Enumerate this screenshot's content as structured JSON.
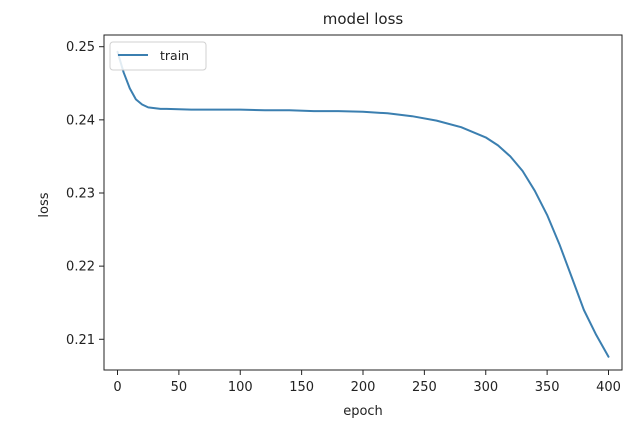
{
  "chart_data": {
    "type": "line",
    "title": "model loss",
    "xlabel": "epoch",
    "ylabel": "loss",
    "xlim": [
      -11,
      411
    ],
    "ylim": [
      0.2058,
      0.2516
    ],
    "xticks": [
      0,
      50,
      100,
      150,
      200,
      250,
      300,
      350,
      400
    ],
    "yticks": [
      0.21,
      0.22,
      0.23,
      0.24,
      0.25
    ],
    "ytick_labels": [
      "0.21",
      "0.22",
      "0.23",
      "0.24",
      "0.25"
    ],
    "grid": false,
    "legend": {
      "position": "upper-left",
      "entries": [
        "train"
      ]
    },
    "series": [
      {
        "name": "train",
        "color": "#3b7fb0",
        "x": [
          0,
          5,
          10,
          15,
          20,
          25,
          30,
          35,
          40,
          60,
          80,
          100,
          120,
          140,
          160,
          180,
          200,
          220,
          240,
          260,
          280,
          300,
          310,
          320,
          330,
          340,
          350,
          360,
          370,
          380,
          390,
          400
        ],
        "y": [
          0.2493,
          0.2465,
          0.2443,
          0.2428,
          0.2421,
          0.2417,
          0.2416,
          0.2415,
          0.2415,
          0.2414,
          0.2414,
          0.2414,
          0.2413,
          0.2413,
          0.2412,
          0.2412,
          0.2411,
          0.2409,
          0.2405,
          0.2399,
          0.239,
          0.2376,
          0.2365,
          0.235,
          0.233,
          0.2303,
          0.227,
          0.223,
          0.2185,
          0.214,
          0.2106,
          0.2076
        ]
      }
    ]
  }
}
